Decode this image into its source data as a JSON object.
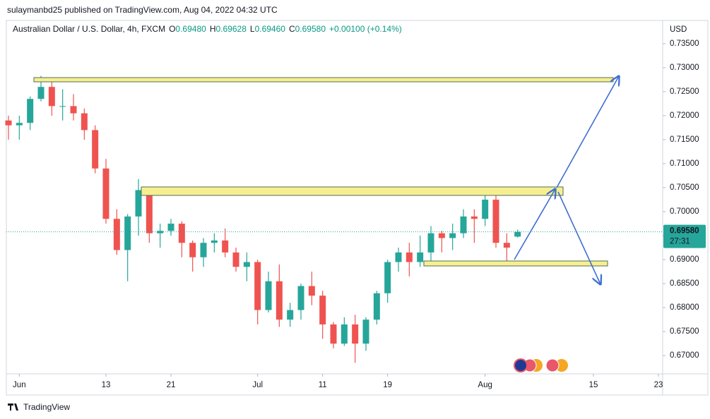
{
  "header": {
    "published": "sulaymanbd25 published on TradingView.com, Aug 04, 2022 04:32 UTC"
  },
  "legend": {
    "symbol": "Australian Dollar / U.S. Dollar, 4h, FXCM",
    "o_label": "O",
    "open": "0.69480",
    "h_label": "H",
    "high": "0.69628",
    "l_label": "L",
    "low": "0.69460",
    "c_label": "C",
    "close": "0.69580",
    "change": "+0.00100 (+0.14%)"
  },
  "price_scale": {
    "currency": "USD",
    "last_price": "0.69580",
    "countdown": "27:31"
  },
  "footer": {
    "brand": "TradingView"
  },
  "chart_data": {
    "type": "candlestick",
    "up_color": "#26a69a",
    "down_color": "#ef5350",
    "x": [
      "2022-05-31",
      "2022-06-01",
      "2022-06-02",
      "2022-06-03",
      "2022-06-06",
      "2022-06-07",
      "2022-06-08",
      "2022-06-09",
      "2022-06-10",
      "2022-06-13",
      "2022-06-14",
      "2022-06-15",
      "2022-06-16",
      "2022-06-17",
      "2022-06-20",
      "2022-06-21",
      "2022-06-22",
      "2022-06-23",
      "2022-06-24",
      "2022-06-27",
      "2022-06-28",
      "2022-06-29",
      "2022-06-30",
      "2022-07-01",
      "2022-07-04",
      "2022-07-05",
      "2022-07-06",
      "2022-07-07",
      "2022-07-08",
      "2022-07-11",
      "2022-07-12",
      "2022-07-13",
      "2022-07-14",
      "2022-07-15",
      "2022-07-18",
      "2022-07-19",
      "2022-07-20",
      "2022-07-21",
      "2022-07-22",
      "2022-07-25",
      "2022-07-26",
      "2022-07-27",
      "2022-07-28",
      "2022-07-29",
      "2022-08-01",
      "2022-08-02",
      "2022-08-03",
      "2022-08-04"
    ],
    "open": [
      0.719,
      0.718,
      0.7185,
      0.7235,
      0.726,
      0.722,
      0.722,
      0.7205,
      0.717,
      0.709,
      0.6985,
      0.692,
      0.699,
      0.7045,
      0.6955,
      0.696,
      0.6975,
      0.6935,
      0.6905,
      0.6935,
      0.694,
      0.6915,
      0.6885,
      0.6895,
      0.6795,
      0.6855,
      0.6775,
      0.6795,
      0.6845,
      0.6825,
      0.6765,
      0.6725,
      0.6765,
      0.6725,
      0.6775,
      0.683,
      0.6895,
      0.6915,
      0.6895,
      0.6915,
      0.6955,
      0.6945,
      0.6955,
      0.699,
      0.6985,
      0.7025,
      0.6935,
      0.6948
    ],
    "high": [
      0.72,
      0.72,
      0.724,
      0.7283,
      0.727,
      0.7255,
      0.7245,
      0.7215,
      0.718,
      0.711,
      0.7005,
      0.6995,
      0.7068,
      0.705,
      0.6975,
      0.6985,
      0.698,
      0.694,
      0.6945,
      0.6955,
      0.6965,
      0.6925,
      0.6915,
      0.69,
      0.6875,
      0.689,
      0.681,
      0.685,
      0.6875,
      0.6835,
      0.677,
      0.678,
      0.6785,
      0.678,
      0.6835,
      0.69,
      0.6925,
      0.6935,
      0.695,
      0.697,
      0.696,
      0.6975,
      0.7005,
      0.7005,
      0.7048,
      0.7035,
      0.6955,
      0.69628
    ],
    "low": [
      0.715,
      0.715,
      0.717,
      0.723,
      0.72,
      0.719,
      0.719,
      0.715,
      0.708,
      0.6975,
      0.691,
      0.6855,
      0.695,
      0.6935,
      0.6925,
      0.695,
      0.6905,
      0.6875,
      0.6885,
      0.6915,
      0.6905,
      0.6875,
      0.6855,
      0.6765,
      0.679,
      0.676,
      0.676,
      0.6775,
      0.6805,
      0.6735,
      0.6715,
      0.672,
      0.6685,
      0.671,
      0.6765,
      0.681,
      0.6875,
      0.6865,
      0.6885,
      0.6895,
      0.6915,
      0.692,
      0.6945,
      0.6935,
      0.697,
      0.6925,
      0.6895,
      0.6946
    ],
    "close": [
      0.718,
      0.7185,
      0.7235,
      0.726,
      0.722,
      0.722,
      0.7205,
      0.717,
      0.709,
      0.6985,
      0.692,
      0.699,
      0.7045,
      0.6955,
      0.696,
      0.6975,
      0.6935,
      0.6905,
      0.6935,
      0.694,
      0.6915,
      0.6885,
      0.6895,
      0.6795,
      0.6855,
      0.6775,
      0.6795,
      0.6845,
      0.6825,
      0.6765,
      0.6725,
      0.6765,
      0.6725,
      0.6775,
      0.683,
      0.6895,
      0.6915,
      0.6895,
      0.6915,
      0.6955,
      0.6945,
      0.6955,
      0.699,
      0.6985,
      0.7025,
      0.6935,
      0.6925,
      0.6958
    ],
    "xlim": [
      "2022-05-31",
      "2022-08-23"
    ],
    "xticks": [
      {
        "value": "2022-06-01",
        "label": "Jun"
      },
      {
        "value": "2022-06-13",
        "label": "13"
      },
      {
        "value": "2022-06-21",
        "label": "21"
      },
      {
        "value": "2022-07-01",
        "label": "Jul"
      },
      {
        "value": "2022-07-11",
        "label": "11"
      },
      {
        "value": "2022-07-19",
        "label": "19"
      },
      {
        "value": "2022-08-01",
        "label": "Aug"
      },
      {
        "value": "2022-08-15",
        "label": "15"
      },
      {
        "value": "2022-08-23",
        "label": "23"
      }
    ],
    "ylim": [
      0.6662,
      0.7397
    ],
    "yticks": [
      {
        "value": 0.735,
        "label": "0.73500"
      },
      {
        "value": 0.73,
        "label": "0.73000"
      },
      {
        "value": 0.725,
        "label": "0.72500"
      },
      {
        "value": 0.72,
        "label": "0.72000"
      },
      {
        "value": 0.715,
        "label": "0.71500"
      },
      {
        "value": 0.71,
        "label": "0.71000"
      },
      {
        "value": 0.705,
        "label": "0.70500"
      },
      {
        "value": 0.7,
        "label": "0.70000"
      },
      {
        "value": 0.695,
        "label": "0.69500"
      },
      {
        "value": 0.69,
        "label": "0.69000"
      },
      {
        "value": 0.685,
        "label": "0.68500"
      },
      {
        "value": 0.68,
        "label": "0.68000"
      },
      {
        "value": 0.675,
        "label": "0.67500"
      },
      {
        "value": 0.67,
        "label": "0.67000"
      }
    ],
    "grid": false
  }
}
